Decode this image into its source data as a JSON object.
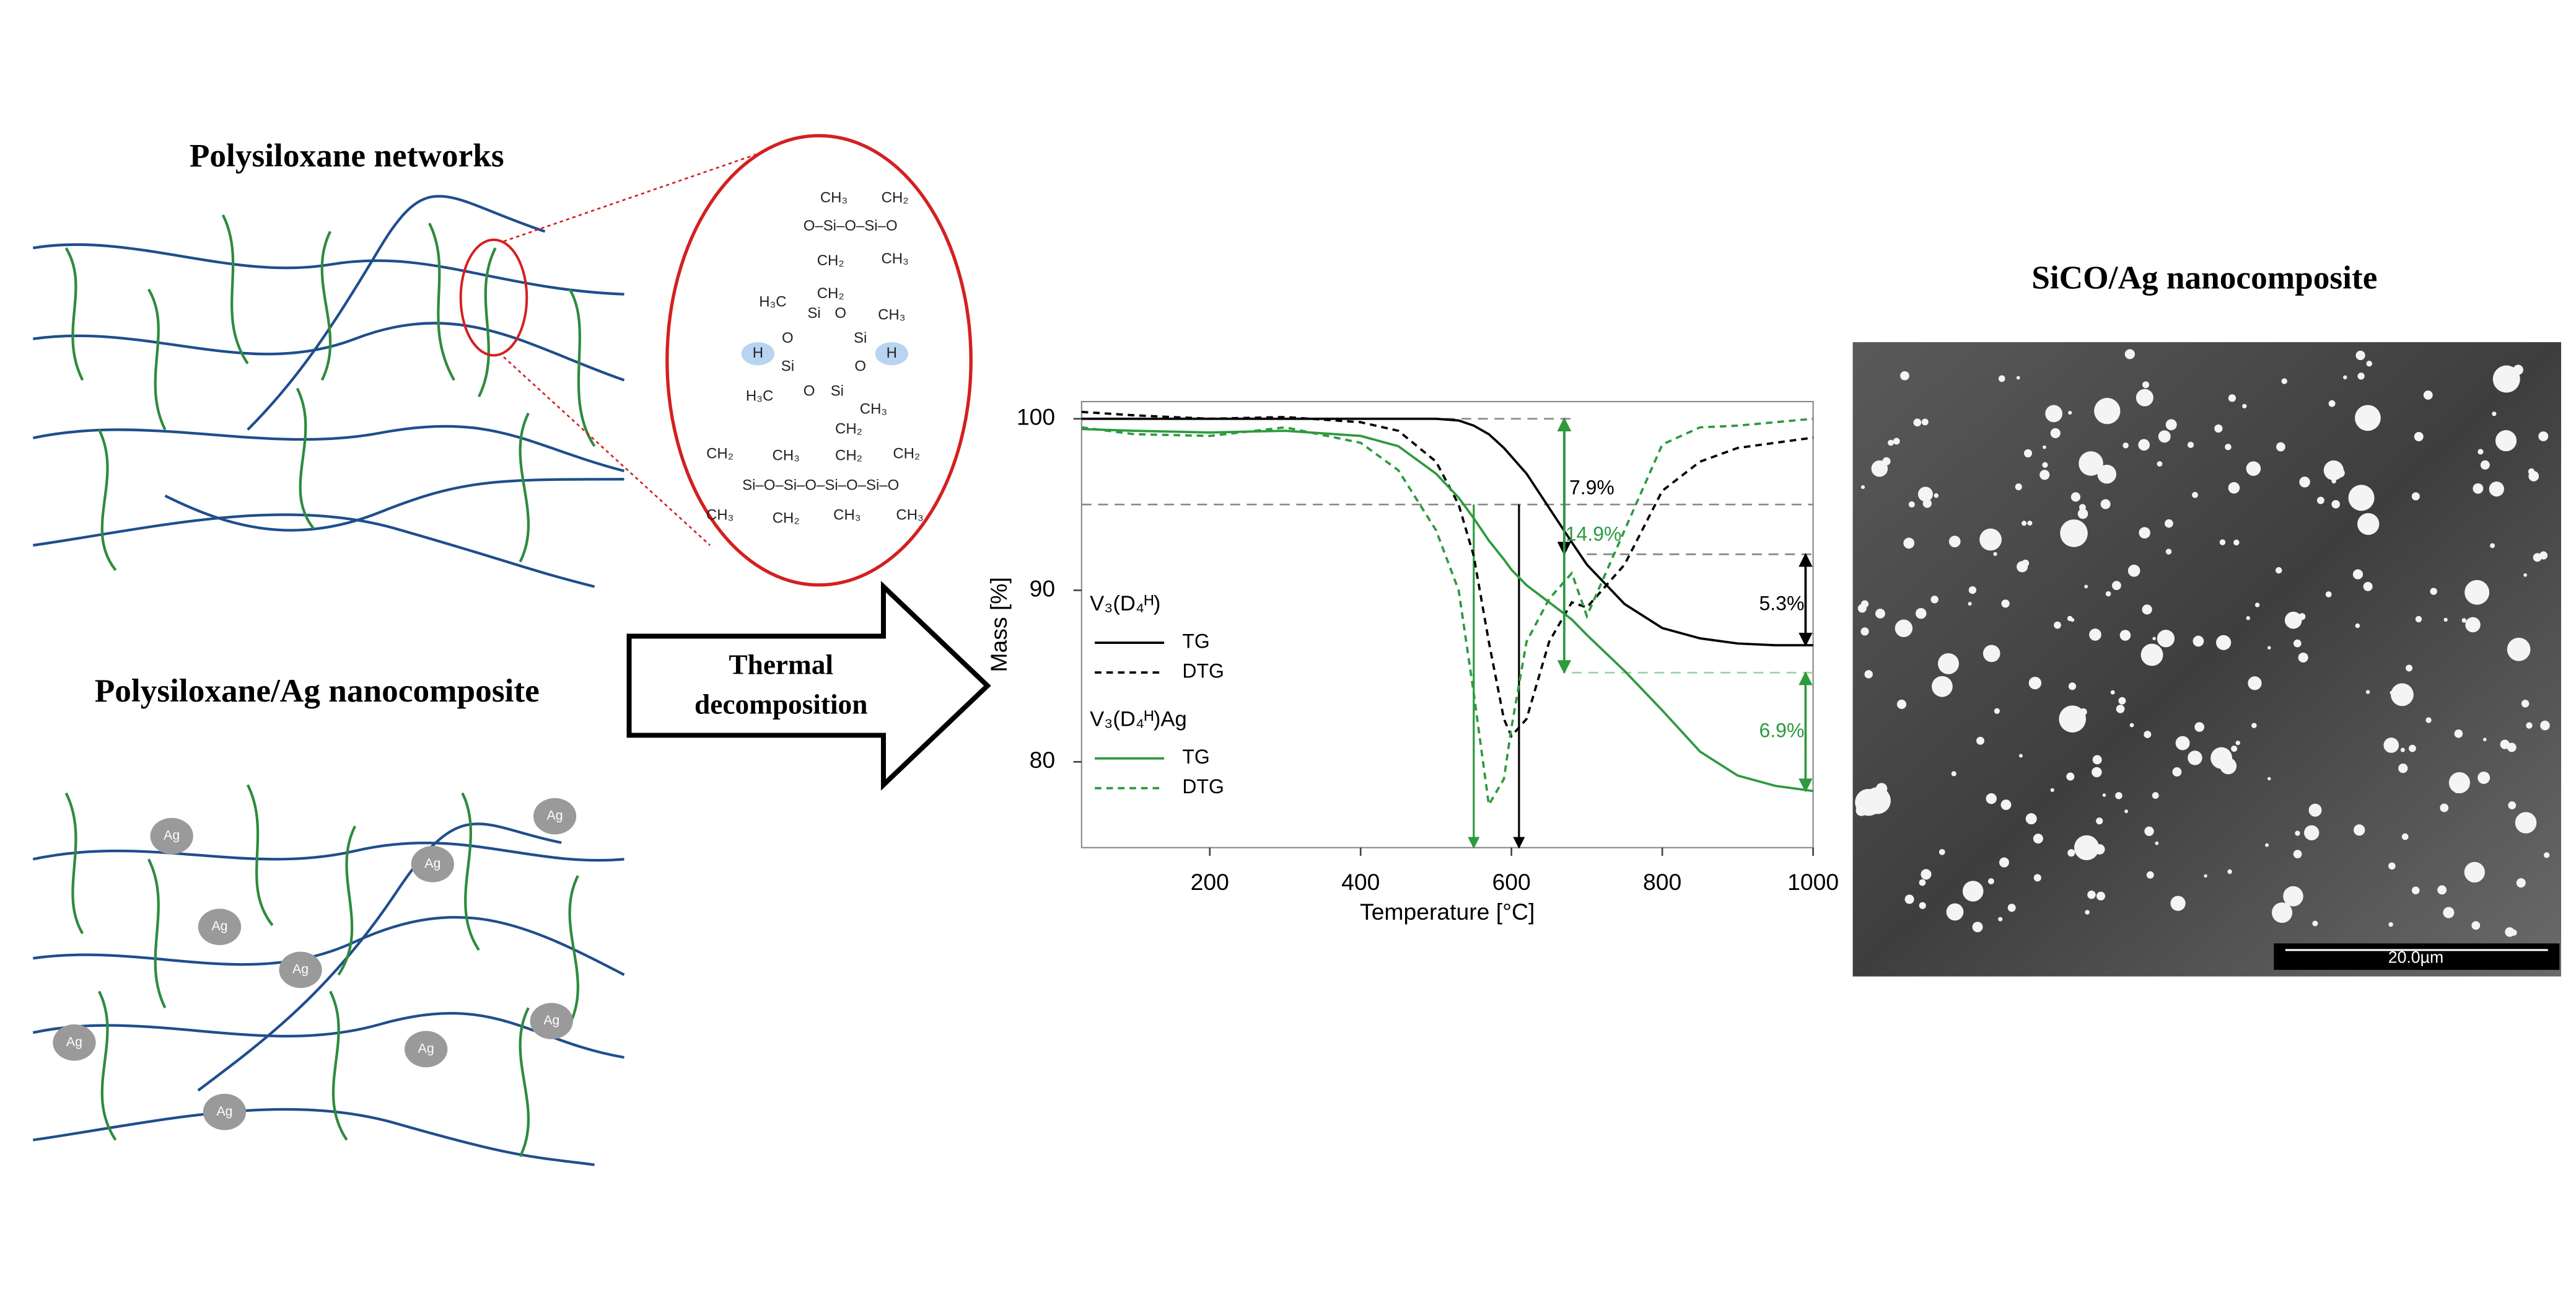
{
  "panels": {
    "network_title": "Polysiloxane networks",
    "composite_title": "Polysiloxane/Ag nanocomposite",
    "ag_labels": [
      "Ag",
      "Ag",
      "Ag",
      "Ag",
      "Ag",
      "Ag",
      "Ag",
      "Ag",
      "Ag"
    ],
    "arrow_label": [
      "Thermal",
      "decomposition"
    ],
    "sem_title": "SiCO/Ag nanocomposite",
    "scale_bar": "20.0µm"
  },
  "structure": {
    "labels": [
      "CH₃",
      "CH₂",
      "O–Si–O–Si–O",
      "CH₂",
      "CH₂",
      "CH₃",
      "H₃C",
      "Si",
      "O",
      "CH₃",
      "O",
      "Si",
      "H",
      "H",
      "Si",
      "O",
      "H₃C",
      "O",
      "Si",
      "CH₃",
      "CH₂",
      "CH₂",
      "CH₃",
      "CH₂",
      "CH₂",
      "Si–O–Si–O–Si–O–Si–O",
      "CH₃",
      "CH₂",
      "CH₃",
      "CH₃"
    ]
  },
  "chart_data": {
    "type": "line",
    "xlabel": "Temperature [°C]",
    "ylabel": "Mass [%]",
    "xlim": [
      30,
      1000
    ],
    "ylim": [
      75,
      101
    ],
    "xticks": [
      200,
      400,
      600,
      800,
      1000
    ],
    "yticks": [
      80,
      90,
      100
    ],
    "x": [
      30,
      100,
      200,
      300,
      400,
      450,
      500,
      530,
      550,
      570,
      590,
      600,
      620,
      650,
      680,
      700,
      750,
      800,
      850,
      900,
      950,
      1000
    ],
    "legend_groups": [
      "V₃(D₄ᴴ)",
      "V₃(D₄ᴴ)Ag"
    ],
    "series": [
      {
        "name": "TG",
        "group": 0,
        "style": "solid",
        "color": "#000000",
        "values": [
          100,
          100,
          100,
          100,
          100,
          100,
          100,
          99.9,
          99.6,
          99.1,
          98.3,
          97.8,
          96.8,
          94.8,
          92.8,
          91.5,
          89.2,
          87.8,
          87.2,
          86.9,
          86.8,
          86.8
        ]
      },
      {
        "name": "DTG",
        "group": 0,
        "style": "dashed",
        "color": "#000000",
        "values": [
          100.4,
          100.2,
          100,
          100.1,
          99.8,
          99.3,
          97.5,
          95,
          92,
          87,
          82.5,
          81.5,
          82.5,
          87,
          89.3,
          89,
          91.5,
          95.8,
          97.5,
          98.3,
          98.6,
          98.9
        ]
      },
      {
        "name": "TG",
        "group": 1,
        "style": "solid",
        "color": "#2e9a3e",
        "values": [
          99.4,
          99.3,
          99.2,
          99.3,
          99,
          98.4,
          96.8,
          95.4,
          94.2,
          92.9,
          91.8,
          91.2,
          90.3,
          89.3,
          88.3,
          87.4,
          85.3,
          83,
          80.6,
          79.2,
          78.6,
          78.3
        ]
      },
      {
        "name": "DTG",
        "group": 1,
        "style": "dashed",
        "color": "#2e9a3e",
        "values": [
          99.5,
          99.1,
          99,
          99.5,
          98.6,
          97,
          93.5,
          90,
          84,
          77.5,
          79,
          82,
          87,
          89.5,
          91,
          88.5,
          93.5,
          98.5,
          99.5,
          99.6,
          99.8,
          100
        ]
      }
    ],
    "hlines": [
      {
        "value": 100,
        "color": "#888888"
      },
      {
        "value": 95,
        "color": "#888888"
      },
      {
        "value": 92.1,
        "color": "#888888"
      },
      {
        "value": 85.2,
        "color": "#9fd3a6"
      }
    ],
    "vlines": [
      {
        "value": 610,
        "color": "#000000"
      },
      {
        "value": 550,
        "color": "#2e9a3e"
      }
    ],
    "annotations": [
      {
        "text": "7.9%",
        "color": "#000000"
      },
      {
        "text": "14.9%",
        "color": "#2e9a3e"
      },
      {
        "text": "5.3%",
        "color": "#000000"
      },
      {
        "text": "6.9%",
        "color": "#2e9a3e"
      }
    ]
  }
}
